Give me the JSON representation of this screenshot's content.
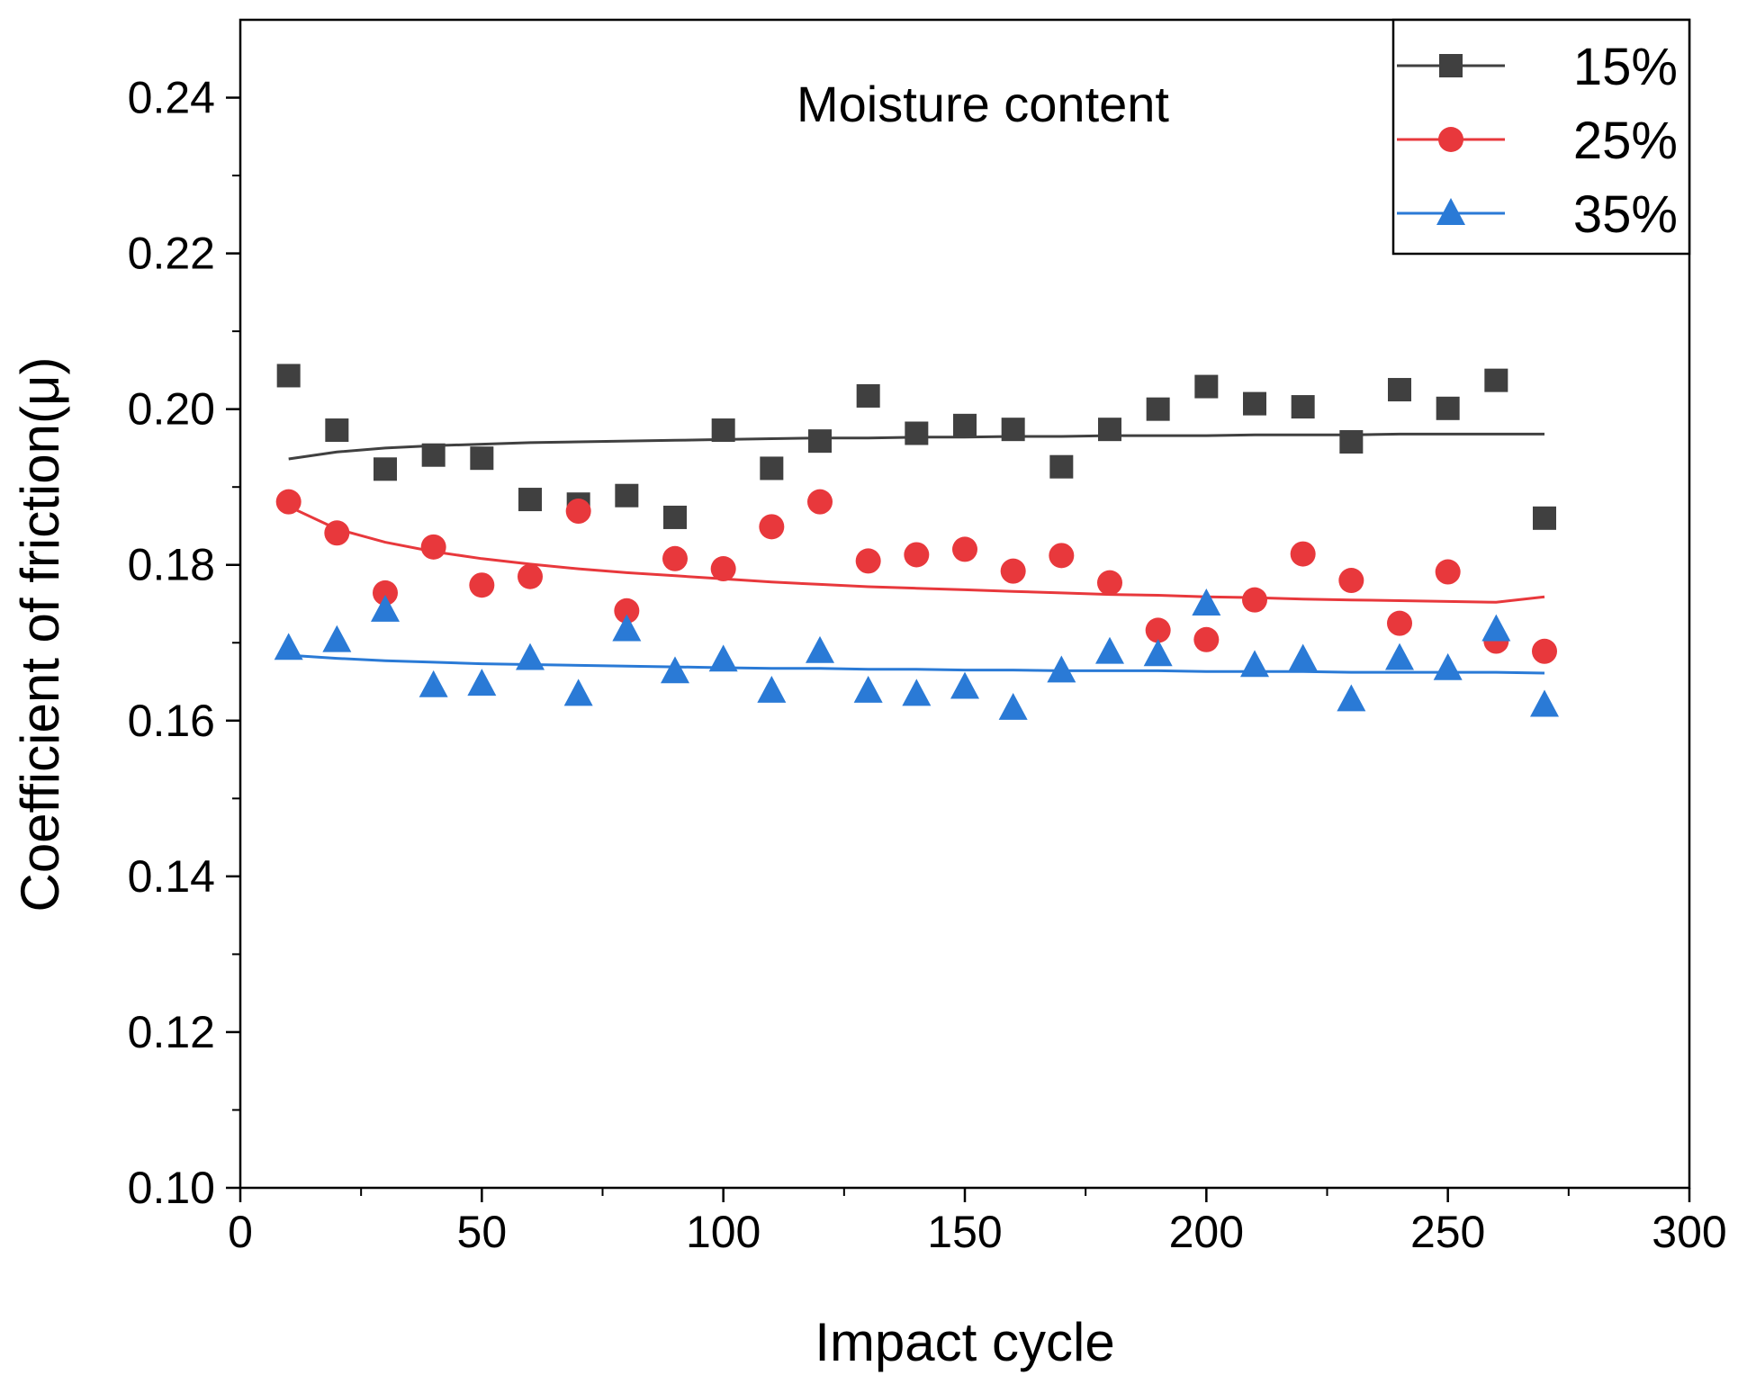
{
  "chart_data": {
    "type": "scatter",
    "title": "",
    "annotation": "Moisture content",
    "xlabel": "Impact cycle",
    "ylabel": "Coefficient of friction(μ)",
    "xlim": [
      0,
      300
    ],
    "ylim": [
      0.1,
      0.25
    ],
    "x_ticks": [
      0,
      50,
      100,
      150,
      200,
      250,
      300
    ],
    "y_ticks": [
      0.1,
      0.12,
      0.14,
      0.16,
      0.18,
      0.2,
      0.22,
      0.24
    ],
    "x_tick_labels": [
      "0",
      "50",
      "100",
      "150",
      "200",
      "250",
      "300"
    ],
    "y_tick_labels": [
      "0.10",
      "0.12",
      "0.14",
      "0.16",
      "0.18",
      "0.20",
      "0.22",
      "0.24"
    ],
    "grid": false,
    "legend_position": "top-right",
    "x": [
      10,
      20,
      30,
      40,
      50,
      60,
      70,
      80,
      90,
      100,
      110,
      120,
      130,
      140,
      150,
      160,
      170,
      180,
      190,
      200,
      210,
      220,
      230,
      240,
      250,
      260,
      270
    ],
    "series": [
      {
        "name": "15%",
        "marker": "square",
        "color": "#404040",
        "values": [
          0.2043,
          0.1973,
          0.1923,
          0.1941,
          0.1937,
          0.1884,
          0.1878,
          0.1889,
          0.1861,
          0.1973,
          0.1924,
          0.1959,
          0.2017,
          0.1969,
          0.1979,
          0.1974,
          0.1926,
          0.1974,
          0.2,
          0.2029,
          0.2007,
          0.2003,
          0.1958,
          0.2025,
          0.2001,
          0.2037,
          0.186
        ],
        "fit": [
          0.1936,
          0.1945,
          0.195,
          0.1953,
          0.1955,
          0.1957,
          0.1958,
          0.1959,
          0.196,
          0.1961,
          0.1962,
          0.1963,
          0.1963,
          0.1964,
          0.1964,
          0.1965,
          0.1965,
          0.1966,
          0.1966,
          0.1966,
          0.1967,
          0.1967,
          0.1967,
          0.1968,
          0.1968,
          0.1968,
          0.1968
        ]
      },
      {
        "name": "25%",
        "marker": "circle",
        "color": "#e8383c",
        "values": [
          0.1881,
          0.1841,
          0.1764,
          0.1823,
          0.1774,
          0.1785,
          0.1869,
          0.1741,
          0.1808,
          0.1795,
          0.1849,
          0.1881,
          0.1805,
          0.1813,
          0.182,
          0.1792,
          0.1812,
          0.1777,
          0.1716,
          0.1704,
          0.1755,
          0.1814,
          0.178,
          0.1725,
          0.1791,
          0.1702,
          0.1689
        ],
        "fit": [
          0.1875,
          0.1846,
          0.1829,
          0.1817,
          0.1808,
          0.1801,
          0.1795,
          0.179,
          0.1786,
          0.1782,
          0.1778,
          0.1775,
          0.1772,
          0.177,
          0.1768,
          0.1766,
          0.1764,
          0.1762,
          0.1761,
          0.1759,
          0.1758,
          0.1756,
          0.1755,
          0.1754,
          0.1753,
          0.1752,
          0.1759
        ]
      },
      {
        "name": "35%",
        "marker": "triangle",
        "color": "#2a7ad6",
        "values": [
          0.1693,
          0.1703,
          0.1742,
          0.1645,
          0.1647,
          0.168,
          0.1634,
          0.1717,
          0.1663,
          0.1678,
          0.1638,
          0.1689,
          0.1638,
          0.1634,
          0.1643,
          0.1616,
          0.1664,
          0.1688,
          0.1685,
          0.175,
          0.1671,
          0.1679,
          0.1627,
          0.168,
          0.1667,
          0.1717,
          0.162
        ],
        "fit": [
          0.1684,
          0.168,
          0.1677,
          0.1675,
          0.1673,
          0.1672,
          0.1671,
          0.167,
          0.1669,
          0.1668,
          0.1667,
          0.1667,
          0.1666,
          0.1666,
          0.1665,
          0.1665,
          0.1664,
          0.1664,
          0.1664,
          0.1663,
          0.1663,
          0.1663,
          0.1662,
          0.1662,
          0.1662,
          0.1662,
          0.1661
        ]
      }
    ]
  }
}
